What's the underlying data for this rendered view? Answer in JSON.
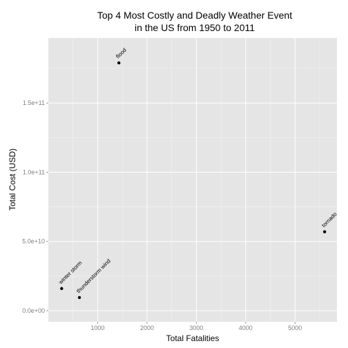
{
  "chart_data": {
    "type": "scatter",
    "title": "Top 4 Most Costly and Deadly Weather Event",
    "subtitle": "in the US from 1950 to 2011",
    "xlabel": "Total Fatalities",
    "ylabel": "Total Cost (USD)",
    "xlim": [
      0,
      5850
    ],
    "ylim": [
      -8000000000.0,
      197000000000.0
    ],
    "xticks": [
      1000,
      2000,
      3000,
      4000,
      5000
    ],
    "yticks": [
      0,
      50000000000.0,
      100000000000.0,
      150000000000.0
    ],
    "xtick_labels": [
      "1000",
      "2000",
      "3000",
      "4000",
      "5000"
    ],
    "ytick_labels": [
      "0.0e+00",
      "5.0e+10",
      "1.0e+11",
      "1.5e+11"
    ],
    "grid": true,
    "colors": {
      "panel_bg": "#e5e5e5",
      "grid_major": "#ffffff",
      "grid_minor": "#f2f2f2",
      "point": "#000000",
      "tick_text": "#7f7f7f"
    },
    "points": [
      {
        "label": "flood",
        "x": 1430,
        "y": 179000000000.0
      },
      {
        "label": "tornado",
        "x": 5600,
        "y": 57000000000.0
      },
      {
        "label": "winter storm",
        "x": 270,
        "y": 16000000000.0
      },
      {
        "label": "thunderstorm wind",
        "x": 630,
        "y": 9500000000.0
      }
    ]
  }
}
